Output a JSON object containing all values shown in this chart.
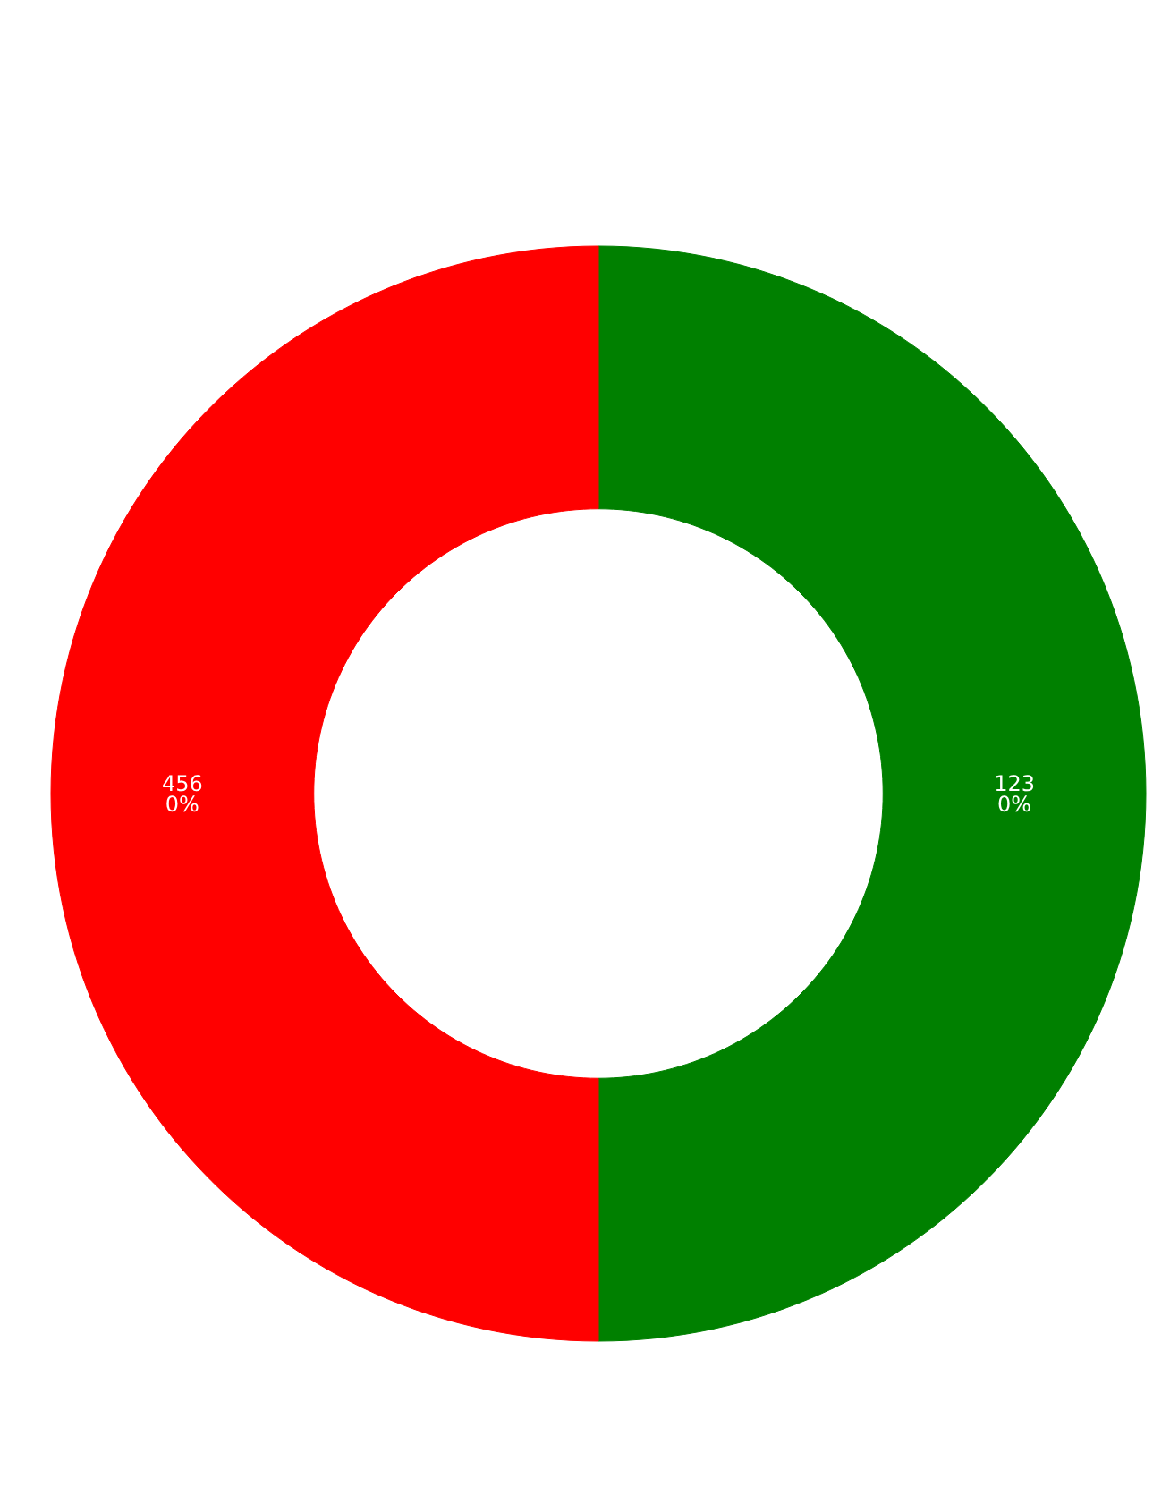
{
  "chart_data": {
    "type": "donut",
    "categories": [
      null,
      null
    ],
    "values": [
      50,
      50
    ],
    "colors": [
      "#008000",
      "#ff0000"
    ],
    "annotations": [
      "123\n0%",
      "456\n0%"
    ]
  }
}
